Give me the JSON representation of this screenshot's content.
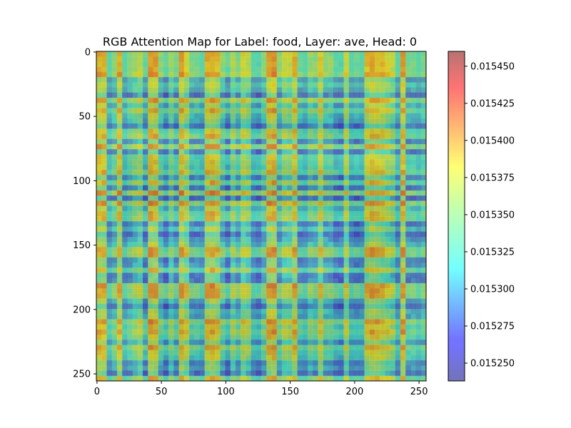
{
  "chart_data": {
    "type": "heatmap",
    "title": "RGB Attention Map for Label: food, Layer: ave, Head: 0",
    "xlabel": "",
    "ylabel": "",
    "xlim": [
      0,
      255
    ],
    "ylim": [
      255,
      0
    ],
    "x_ticks": [
      0,
      50,
      100,
      150,
      200,
      250
    ],
    "y_ticks": [
      0,
      50,
      100,
      150,
      200,
      250
    ],
    "grid_size": 64,
    "colormap": "jet",
    "overlay_alpha": 0.5,
    "grid": false,
    "colorbar": {
      "min": 0.015238,
      "max": 0.01546,
      "ticks": [
        0.01525,
        0.015275,
        0.0153,
        0.015325,
        0.01535,
        0.015375,
        0.0154,
        0.015425,
        0.01545
      ],
      "tick_labels": [
        "0.015250",
        "0.015275",
        "0.015300",
        "0.015325",
        "0.015350",
        "0.015375",
        "0.015400",
        "0.015425",
        "0.015450"
      ]
    },
    "colors": {
      "background_image_base": "#8f8a5c",
      "colormap_low": "#00007f",
      "colormap_high": "#7f0000"
    }
  }
}
